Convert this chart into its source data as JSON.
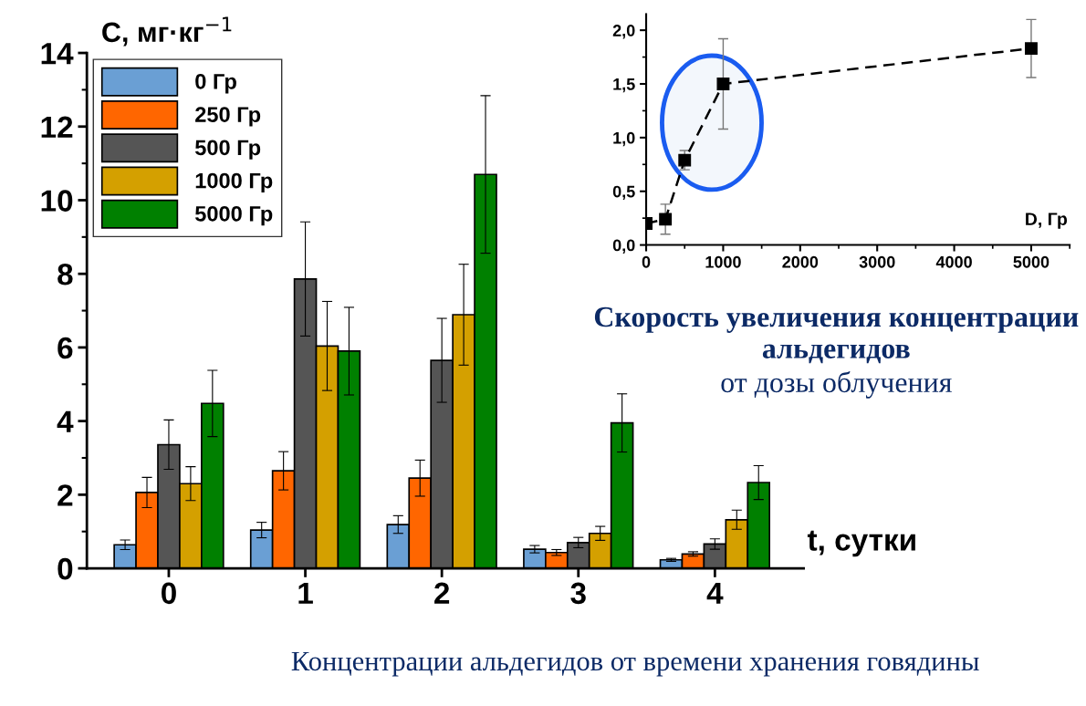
{
  "chart_data": [
    {
      "type": "bar",
      "ylabel": "C, мг·кг$^{−1}$",
      "xlabel": "t, сутки",
      "categories": [
        "0",
        "1",
        "2",
        "3",
        "4"
      ],
      "ylim": [
        0,
        14
      ],
      "yticks": [
        0,
        2,
        4,
        6,
        8,
        10,
        12,
        14
      ],
      "legend": "top left",
      "grid": false,
      "series": [
        {
          "name": "0 Гр",
          "color": "#6a9fd4",
          "values": [
            0.64,
            1.04,
            1.19,
            0.52,
            0.23
          ],
          "errors": [
            0.13,
            0.21,
            0.24,
            0.1,
            0.04
          ]
        },
        {
          "name": "250 Гр",
          "color": "#ff6600",
          "values": [
            2.06,
            2.65,
            2.45,
            0.43,
            0.39
          ],
          "errors": [
            0.41,
            0.52,
            0.49,
            0.08,
            0.06
          ]
        },
        {
          "name": "500 Гр",
          "color": "#555555",
          "values": [
            3.36,
            7.86,
            5.65,
            0.7,
            0.66
          ],
          "errors": [
            0.67,
            1.55,
            1.14,
            0.14,
            0.14
          ]
        },
        {
          "name": "1000 Гр",
          "color": "#d4a000",
          "values": [
            2.3,
            6.04,
            6.89,
            0.95,
            1.32
          ],
          "errors": [
            0.46,
            1.21,
            1.37,
            0.19,
            0.26
          ]
        },
        {
          "name": "5000 Гр",
          "color": "#008000",
          "values": [
            4.48,
            5.9,
            10.7,
            3.95,
            2.33
          ],
          "errors": [
            0.9,
            1.19,
            2.14,
            0.79,
            0.46
          ]
        }
      ],
      "annotations": [
        "Концентрации альдегидов от времени хранения говядины"
      ]
    },
    {
      "type": "line",
      "xlabel": "D, Гр",
      "x": [
        0,
        250,
        500,
        1000,
        5000
      ],
      "xlim": [
        0,
        5500
      ],
      "xticks": [
        0,
        1000,
        2000,
        3000,
        4000,
        5000
      ],
      "ylim": [
        0,
        2.15
      ],
      "yticks": [
        {
          "value": 0,
          "label": "0,0"
        },
        {
          "value": 0.5,
          "label": "0,5"
        },
        {
          "value": 1.0,
          "label": "1,0"
        },
        {
          "value": 1.5,
          "label": "1,5"
        },
        {
          "value": 2.0,
          "label": "2,0"
        }
      ],
      "marker": "square",
      "line_style": "dashed",
      "grid": false,
      "series": [
        {
          "color": "#000000",
          "values": [
            0.2,
            0.24,
            0.79,
            1.5,
            1.83
          ],
          "errors": [
            0.05,
            0.14,
            0.09,
            0.42,
            0.27
          ]
        }
      ],
      "annotations": [
        "Скорость увеличения концентрации альдегидов",
        "от дозы облучения"
      ]
    }
  ]
}
